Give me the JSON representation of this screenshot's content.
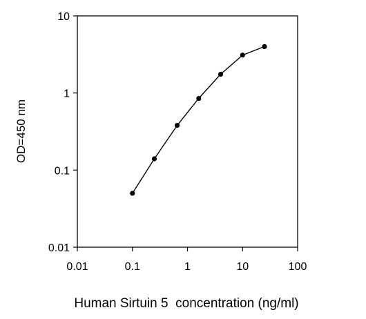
{
  "chart_data": {
    "type": "line",
    "xscale": "log",
    "yscale": "log",
    "xlabel": "Human Sirtuin 5  concentration (ng/ml)",
    "ylabel": "OD=450 nm",
    "xlim": [
      0.01,
      100
    ],
    "ylim": [
      0.01,
      10
    ],
    "x_ticks": [
      {
        "value": 0.01,
        "label": "0.01"
      },
      {
        "value": 0.1,
        "label": "0.1"
      },
      {
        "value": 1,
        "label": "1"
      },
      {
        "value": 10,
        "label": "10"
      },
      {
        "value": 100,
        "label": "100"
      }
    ],
    "y_ticks": [
      {
        "value": 0.01,
        "label": "0.01"
      },
      {
        "value": 0.1,
        "label": "0.1"
      },
      {
        "value": 1,
        "label": "1"
      },
      {
        "value": 10,
        "label": "10"
      }
    ],
    "grid": false,
    "legend": "none",
    "marker": "circle",
    "line_color": "#000000",
    "series": [
      {
        "x": [
          0.1,
          0.25,
          0.65,
          1.6,
          4.0,
          10.0,
          25.0
        ],
        "y": [
          0.05,
          0.14,
          0.38,
          0.85,
          1.75,
          3.1,
          4.0
        ]
      }
    ]
  }
}
